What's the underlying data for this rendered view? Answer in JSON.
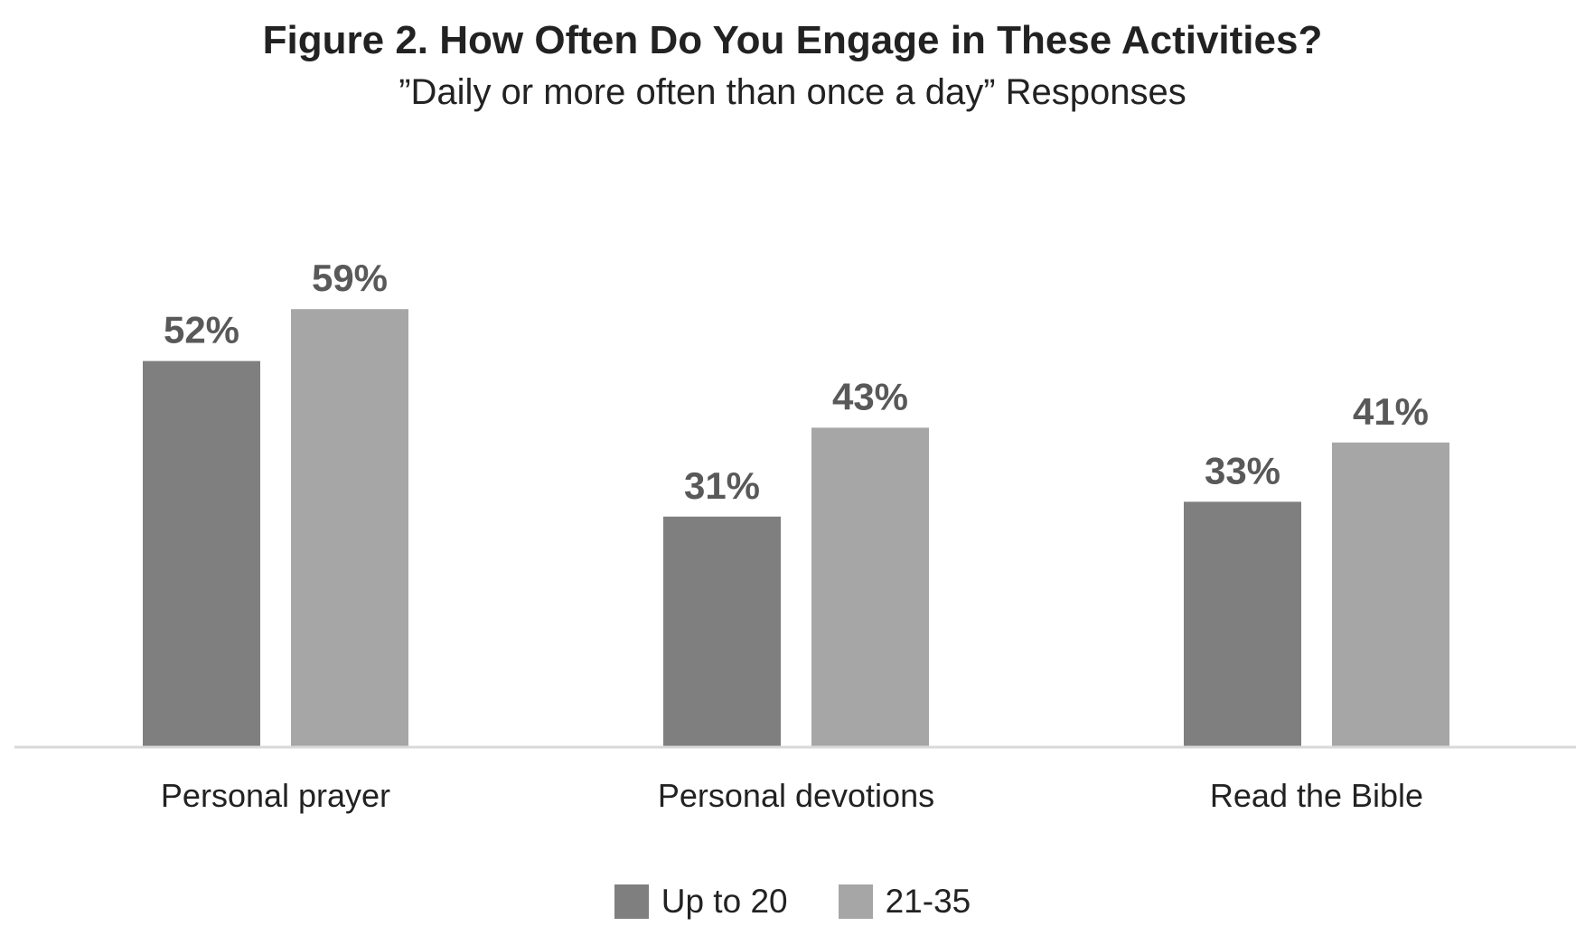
{
  "chart_data": {
    "type": "bar",
    "title": "Figure 2. How Often Do You Engage in These Activities?",
    "subtitle": "”Daily or more often than once a day” Responses",
    "categories": [
      "Personal prayer",
      "Personal devotions",
      "Read the Bible"
    ],
    "series": [
      {
        "name": "Up to 20",
        "values": [
          52,
          31,
          33
        ],
        "labels": [
          "52%",
          "31%",
          "33%"
        ],
        "color": "#7f7f7f"
      },
      {
        "name": "21-35",
        "values": [
          59,
          43,
          41
        ],
        "labels": [
          "59%",
          "43%",
          "41%"
        ],
        "color": "#a6a6a6"
      }
    ],
    "ylim": [
      0,
      65
    ],
    "grid": false,
    "legend_position": "bottom",
    "axis_color": "#d9d9d9",
    "label_color": "#595959"
  }
}
